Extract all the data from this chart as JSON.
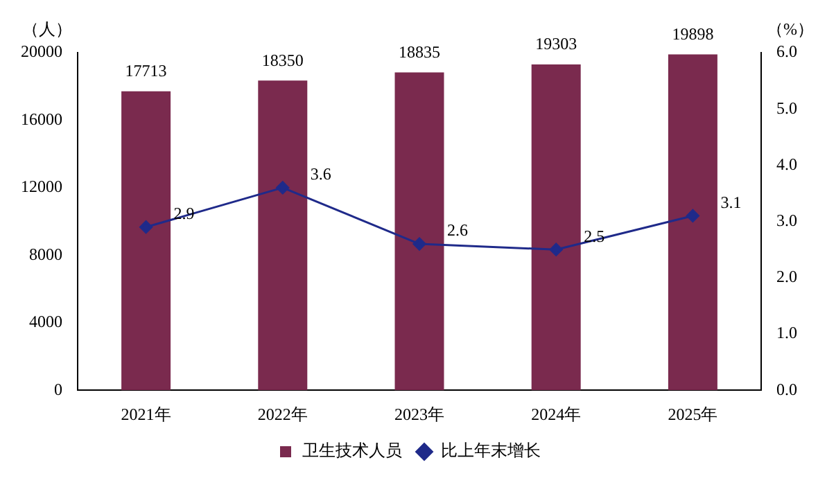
{
  "chart_data": {
    "type": "bar",
    "categories": [
      "2021年",
      "2022年",
      "2023年",
      "2024年",
      "2025年"
    ],
    "series": [
      {
        "name": "卫生技术人员",
        "color": "#7a2a4e",
        "values": [
          17713,
          18350,
          18835,
          19303,
          19898
        ]
      },
      {
        "name": "比上年末增长",
        "type": "line",
        "axis": "y2",
        "color": "#1f2a8a",
        "marker": "diamond",
        "values": [
          2.9,
          3.6,
          2.6,
          2.5,
          3.1
        ]
      }
    ],
    "ylabel": "（人）",
    "y2label": "（%）",
    "ylim": [
      0,
      20000
    ],
    "yticks": [
      0,
      4000,
      8000,
      12000,
      16000,
      20000
    ],
    "y2lim": [
      0,
      6
    ],
    "y2ticks": [
      {
        "value": 0,
        "label": "0.0"
      },
      {
        "value": 1,
        "label": "1.0"
      },
      {
        "value": 2,
        "label": "2.0"
      },
      {
        "value": 3,
        "label": "3.0"
      },
      {
        "value": 4,
        "label": "4.0"
      },
      {
        "value": 5,
        "label": "5.0"
      },
      {
        "value": 6,
        "label": "6.0"
      }
    ],
    "data_labels": true,
    "legend": "bottom",
    "grid": false
  }
}
